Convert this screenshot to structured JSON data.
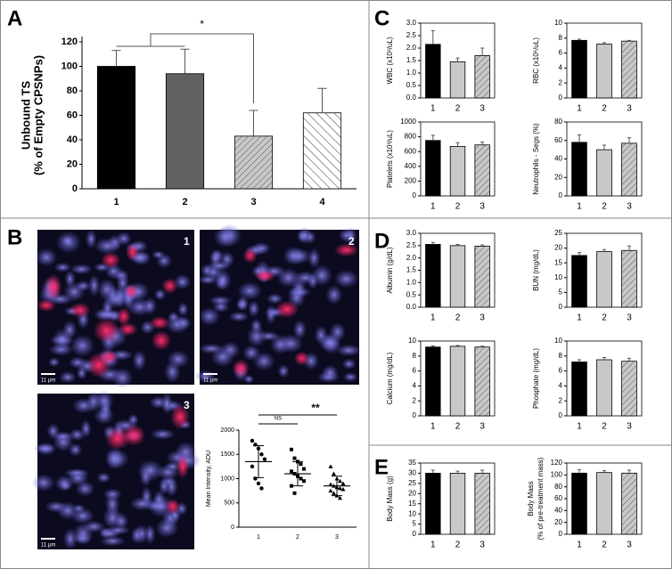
{
  "panel_labels": [
    "A",
    "B",
    "C",
    "D",
    "E"
  ],
  "images": [
    {
      "label": "1",
      "scale": "11 µm"
    },
    {
      "label": "2",
      "scale": "11 µm"
    },
    {
      "label": "3",
      "scale": "11 µm"
    }
  ],
  "chart_data": [
    {
      "type": "bar",
      "y_label": [
        "Unbound TS",
        "(% of Empty CPSNPs)"
      ],
      "categories": [
        "1",
        "2",
        "3",
        "4"
      ],
      "values": [
        100,
        94,
        43,
        62
      ],
      "errors": [
        13,
        20,
        21,
        20
      ],
      "fills": [
        "#000000",
        "#606060",
        "hatch-gray",
        "hatch-white"
      ],
      "ylim": [
        0,
        120
      ],
      "yticks": [
        0,
        20,
        40,
        60,
        80,
        100,
        120
      ],
      "annotation": "*",
      "frame": false
    },
    {
      "type": "scatter",
      "y_label": "Mean Intensity, ADU",
      "categories": [
        "1",
        "2",
        "3"
      ],
      "points": [
        [
          1780,
          1700,
          1620,
          1500,
          1400,
          1250,
          1000,
          900,
          800
        ],
        [
          1600,
          1420,
          1350,
          1300,
          1200,
          1150,
          1100,
          1050,
          1000,
          950,
          850,
          700
        ],
        [
          1250,
          1100,
          1000,
          950,
          900,
          880,
          850,
          820,
          800,
          780,
          750,
          700,
          650,
          600
        ]
      ],
      "means": [
        1350,
        1100,
        850
      ],
      "sds": [
        330,
        250,
        200
      ],
      "markers": [
        "circle",
        "square",
        "triangle"
      ],
      "ylim": [
        0,
        2000
      ],
      "yticks": [
        0,
        500,
        1000,
        1500,
        2000
      ],
      "annotations": [
        "NS",
        "**"
      ],
      "frame": false
    },
    {
      "type": "bar",
      "y_label": "WBC (x10³/uL)",
      "categories": [
        "1",
        "2",
        "3"
      ],
      "values": [
        2.15,
        1.45,
        1.7
      ],
      "errors": [
        0.55,
        0.15,
        0.3
      ],
      "fills": [
        "#000000",
        "#c8c8c8",
        "hatch-gray"
      ],
      "ylim": [
        0,
        3
      ],
      "yticks": [
        {
          "value": 0,
          "label": "0.0"
        },
        0.5,
        {
          "value": 1,
          "label": "1.0"
        },
        1.5,
        {
          "value": 2,
          "label": "2.0"
        },
        2.5,
        {
          "value": 3,
          "label": "3.0"
        }
      ],
      "frame": true
    },
    {
      "type": "bar",
      "y_label": "RBC (x10⁶/uL)",
      "categories": [
        "1",
        "2",
        "3"
      ],
      "values": [
        7.7,
        7.2,
        7.6
      ],
      "errors": [
        0.15,
        0.2,
        0.1
      ],
      "fills": [
        "#000000",
        "#c8c8c8",
        "hatch-gray"
      ],
      "ylim": [
        0,
        10
      ],
      "yticks": [
        0,
        2,
        4,
        6,
        8,
        10
      ],
      "frame": true
    },
    {
      "type": "bar",
      "y_label": "Platelets (x10³/uL)",
      "categories": [
        "1",
        "2",
        "3"
      ],
      "values": [
        750,
        670,
        690
      ],
      "errors": [
        70,
        50,
        40
      ],
      "fills": [
        "#000000",
        "#c8c8c8",
        "hatch-gray"
      ],
      "ylim": [
        0,
        1000
      ],
      "yticks": [
        0,
        200,
        400,
        600,
        800,
        1000
      ],
      "frame": true
    },
    {
      "type": "bar",
      "y_label": "Neutrophils - Segs (%)",
      "categories": [
        "1",
        "2",
        "3"
      ],
      "values": [
        58,
        50,
        57
      ],
      "errors": [
        8,
        5,
        6
      ],
      "fills": [
        "#000000",
        "#c8c8c8",
        "hatch-gray"
      ],
      "ylim": [
        0,
        80
      ],
      "yticks": [
        0,
        20,
        40,
        60,
        80
      ],
      "frame": true
    },
    {
      "type": "bar",
      "y_label": "Albumin (g/dL)",
      "categories": [
        "1",
        "2",
        "3"
      ],
      "values": [
        2.55,
        2.5,
        2.48
      ],
      "errors": [
        0.08,
        0.05,
        0.05
      ],
      "fills": [
        "#000000",
        "#c8c8c8",
        "hatch-gray"
      ],
      "ylim": [
        0,
        3
      ],
      "yticks": [
        {
          "value": 0,
          "label": "0.0"
        },
        0.5,
        {
          "value": 1,
          "label": "1.0"
        },
        1.5,
        {
          "value": 2,
          "label": "2.0"
        },
        2.5,
        {
          "value": 3,
          "label": "3.0"
        }
      ],
      "frame": true
    },
    {
      "type": "bar",
      "y_label": "BUN (mg/dL)",
      "categories": [
        "1",
        "2",
        "3"
      ],
      "values": [
        17.5,
        18.8,
        19.2
      ],
      "errors": [
        1,
        0.7,
        1.5
      ],
      "fills": [
        "#000000",
        "#c8c8c8",
        "hatch-gray"
      ],
      "ylim": [
        0,
        25
      ],
      "yticks": [
        0,
        5,
        10,
        15,
        20,
        25
      ],
      "frame": true
    },
    {
      "type": "bar",
      "y_label": "Calcium (mg/dL)",
      "categories": [
        "1",
        "2",
        "3"
      ],
      "values": [
        9.2,
        9.3,
        9.2
      ],
      "errors": [
        0.15,
        0.1,
        0.12
      ],
      "fills": [
        "#000000",
        "#c8c8c8",
        "hatch-gray"
      ],
      "ylim": [
        0,
        10
      ],
      "yticks": [
        0,
        2,
        4,
        6,
        8,
        10
      ],
      "frame": true
    },
    {
      "type": "bar",
      "y_label": "Phosphate (mg/dL)",
      "categories": [
        "1",
        "2",
        "3"
      ],
      "values": [
        7.2,
        7.5,
        7.3
      ],
      "errors": [
        0.3,
        0.3,
        0.4
      ],
      "fills": [
        "#000000",
        "#c8c8c8",
        "hatch-gray"
      ],
      "ylim": [
        0,
        10
      ],
      "yticks": [
        0,
        2,
        4,
        6,
        8,
        10
      ],
      "frame": true
    },
    {
      "type": "bar",
      "y_label": "Body Mass (g)",
      "categories": [
        "1",
        "2",
        "3"
      ],
      "values": [
        30,
        30,
        30
      ],
      "errors": [
        1.5,
        1,
        1.5
      ],
      "fills": [
        "#000000",
        "#c8c8c8",
        "hatch-gray"
      ],
      "ylim": [
        0,
        35
      ],
      "yticks": [
        0,
        5,
        10,
        15,
        20,
        25,
        30,
        35
      ],
      "frame": true
    },
    {
      "type": "bar",
      "y_label": [
        "Body Mass",
        "(% of pre-treatment mass)"
      ],
      "categories": [
        "1",
        "2",
        "3"
      ],
      "values": [
        103,
        104,
        103
      ],
      "errors": [
        6,
        3,
        5
      ],
      "fills": [
        "#000000",
        "#c8c8c8",
        "hatch-gray"
      ],
      "ylim": [
        0,
        120
      ],
      "yticks": [
        0,
        20,
        40,
        60,
        80,
        100,
        120
      ],
      "frame": true
    }
  ]
}
